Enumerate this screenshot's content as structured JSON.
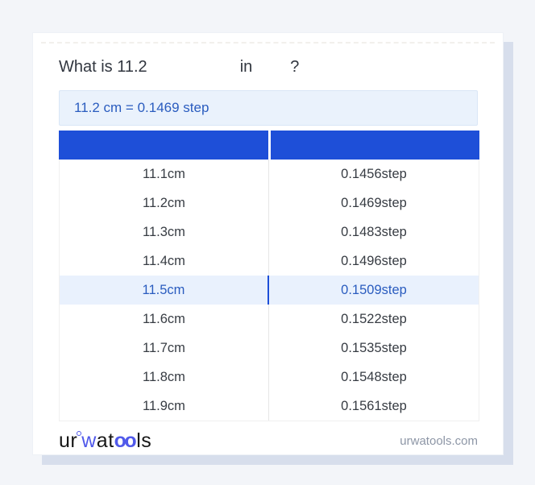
{
  "question": {
    "prefix": "What is 11.2",
    "connector": "in",
    "suffix": "?"
  },
  "result": {
    "text": "11.2 cm = 0.1469 step"
  },
  "table": {
    "columns": [
      "",
      ""
    ],
    "highlight_index": 4,
    "rows": [
      {
        "from": "11.1cm",
        "to": "0.1456step"
      },
      {
        "from": "11.2cm",
        "to": "0.1469step"
      },
      {
        "from": "11.3cm",
        "to": "0.1483step"
      },
      {
        "from": "11.4cm",
        "to": "0.1496step"
      },
      {
        "from": "11.5cm",
        "to": "0.1509step"
      },
      {
        "from": "11.6cm",
        "to": "0.1522step"
      },
      {
        "from": "11.7cm",
        "to": "0.1535step"
      },
      {
        "from": "11.8cm",
        "to": "0.1548step"
      },
      {
        "from": "11.9cm",
        "to": "0.1561step"
      }
    ]
  },
  "footer": {
    "logo": {
      "part1": "ur",
      "part2": "w",
      "part3": "at",
      "part4": "oo",
      "part5": "ls"
    },
    "domain": "urwatools.com"
  },
  "colors": {
    "header_blue": "#1e4fd8",
    "accent_text": "#2a5cbf",
    "result_bg": "#eaf2fc",
    "highlight_bg": "#e9f1fd",
    "highlight_divider": "#1d4ed8",
    "page_bg": "#f3f5f9",
    "card_shadow": "#d7deec",
    "logo_blue": "#5059ea"
  }
}
